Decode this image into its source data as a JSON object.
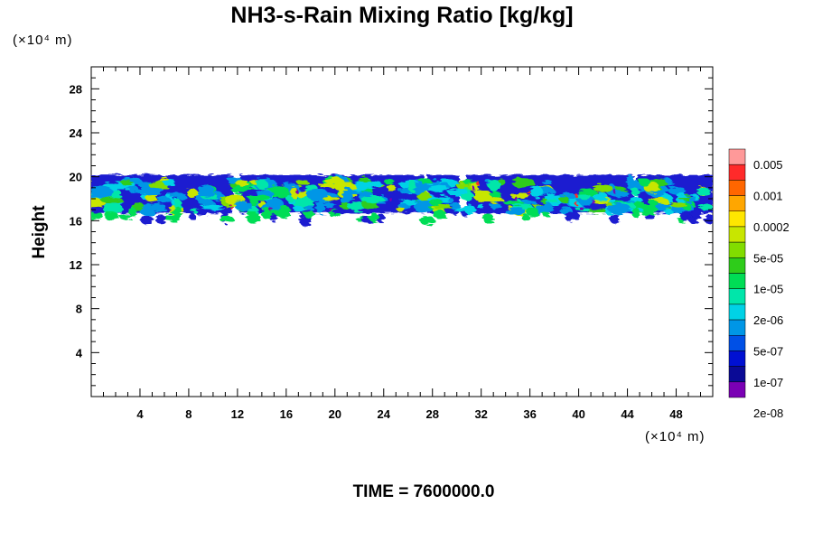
{
  "chart_data": {
    "type": "heatmap",
    "title": "NH3-s-Rain Mixing Ratio [kg/kg]",
    "ylabel": "Height",
    "xlabel": "",
    "x_unit_label": "(×10⁴ m)",
    "y_unit_label": "(×10⁴ m)",
    "x_ticks": [
      4,
      8,
      12,
      16,
      20,
      24,
      28,
      32,
      36,
      40,
      44,
      48
    ],
    "y_ticks": [
      4,
      8,
      12,
      16,
      20,
      24,
      28
    ],
    "xlim": [
      0,
      51
    ],
    "ylim": [
      0,
      30
    ],
    "time_label": "TIME = 7600000.0",
    "colorbar": {
      "labels": [
        "0.005",
        "0.001",
        "0.0002",
        "5e-05",
        "1e-05",
        "2e-06",
        "5e-07",
        "1e-07",
        "2e-08"
      ],
      "colors_top_to_bottom": [
        "#ff9999",
        "#ff2a2a",
        "#ff6600",
        "#ffa600",
        "#ffe600",
        "#c8e600",
        "#82dc00",
        "#2ecc1a",
        "#00dd55",
        "#00e6aa",
        "#00d2e6",
        "#0096e6",
        "#0050e6",
        "#0010d2",
        "#0a0a96",
        "#7a00b4"
      ]
    },
    "layer": {
      "bottom_y": 17,
      "top_y": 20,
      "x_range": [
        0,
        51
      ]
    }
  }
}
